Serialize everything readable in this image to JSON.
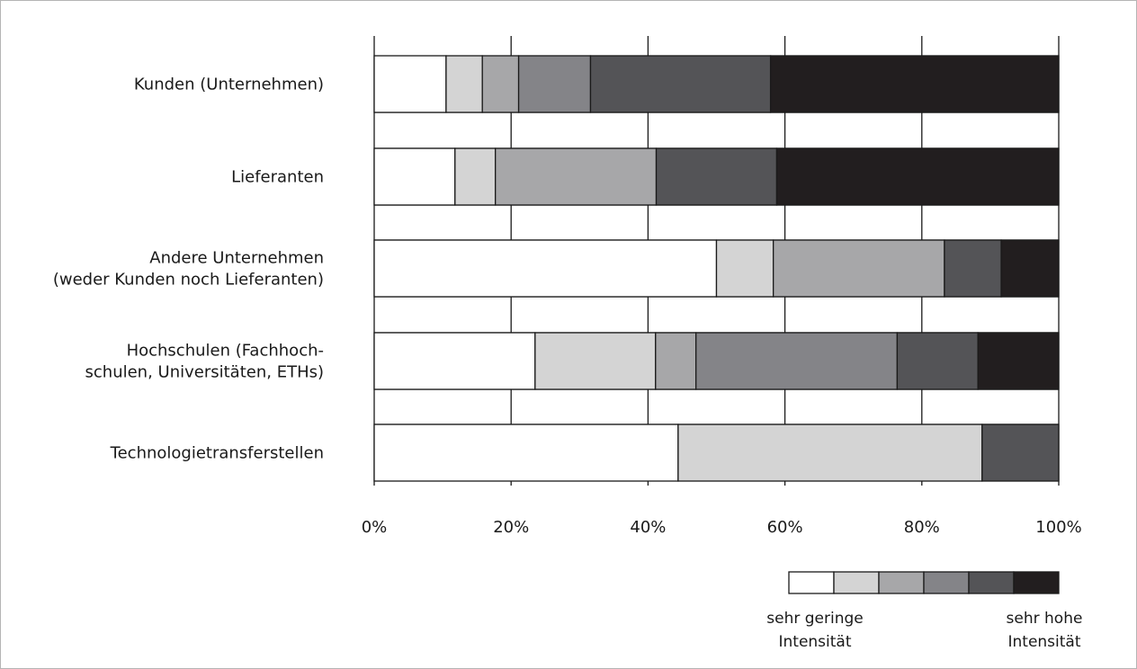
{
  "chart_data": {
    "type": "bar",
    "orientation": "horizontal",
    "stacked": true,
    "categories": [
      [
        "Kunden (Unternehmen)"
      ],
      [
        "Lieferanten"
      ],
      [
        "Andere Unternehmen",
        "(weder Kunden noch Lieferanten)"
      ],
      [
        "Hochschulen (Fachhoch-",
        "schulen, Universitäten, ETHs)"
      ],
      [
        "Technologietransferstellen"
      ]
    ],
    "series": [
      {
        "values": [
          10.5,
          11.8,
          50.0,
          23.5,
          44.4
        ]
      },
      {
        "values": [
          5.3,
          5.9,
          8.3,
          17.6,
          44.4
        ]
      },
      {
        "values": [
          5.3,
          23.5,
          25.0,
          5.9,
          0.0
        ]
      },
      {
        "values": [
          10.5,
          0.0,
          0.0,
          29.4,
          0.0
        ]
      },
      {
        "values": [
          26.3,
          17.6,
          8.3,
          11.8,
          11.2
        ]
      },
      {
        "values": [
          42.1,
          41.2,
          8.4,
          11.8,
          0.0
        ]
      }
    ],
    "colors": [
      "#ffffff",
      "#d4d4d4",
      "#a7a7a9",
      "#848488",
      "#545457",
      "#221e1f"
    ],
    "xlim": [
      0,
      100
    ],
    "x_ticks": [
      "0%",
      "20%",
      "40%",
      "60%",
      "80%",
      "100%"
    ],
    "grid": true,
    "legend": {
      "position": "bottom-right",
      "low_label": [
        "sehr geringe",
        "Intensität"
      ],
      "high_label": [
        "sehr hohe",
        "Intensität"
      ]
    }
  }
}
